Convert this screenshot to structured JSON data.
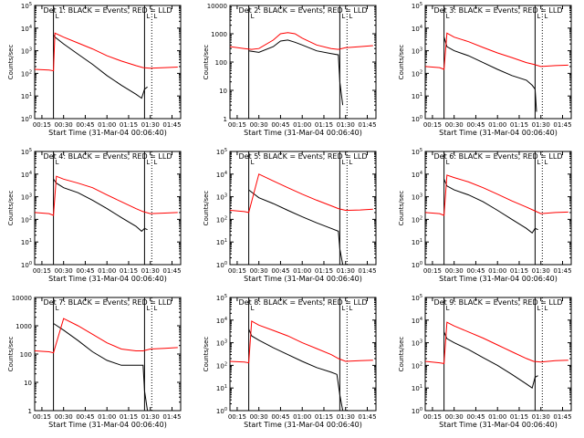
{
  "figure": {
    "background": "#ffffff",
    "events_color": "#000000",
    "lld_color": "#ff0000"
  },
  "chart_data": [
    {
      "type": "line",
      "title": "Det 1: BLACK = Events, RED = LLD",
      "xlabel": "Start Time (31-Mar-04 00:06:40)",
      "ylabel": "Counts/sec",
      "xticks": [
        "00:15",
        "00:30",
        "00:45",
        "01:00",
        "01:15",
        "01:30",
        "01:45"
      ],
      "xlim": [
        "00:10",
        "01:51"
      ],
      "ylim": [
        1,
        100000
      ],
      "yscale": "log",
      "yticks": [
        "10^0",
        "10^1",
        "10^2",
        "10^3",
        "10^4",
        "10^5"
      ],
      "markers": [
        "00:23",
        "01:26",
        "01:31"
      ],
      "marker_label": "L",
      "series": [
        {
          "name": "Events",
          "color": "#000000",
          "x": [
            "00:23",
            "00:24",
            "00:30",
            "00:40",
            "00:50",
            "01:00",
            "01:10",
            "01:20",
            "01:24",
            "01:26",
            "01:28"
          ],
          "y": [
            5000,
            4000,
            2000,
            700,
            250,
            80,
            30,
            12,
            8,
            20,
            25
          ]
        },
        {
          "name": "LLD",
          "color": "#ff0000",
          "x": [
            "00:10",
            "00:20",
            "00:23",
            "00:24",
            "00:30",
            "00:40",
            "00:50",
            "01:00",
            "01:10",
            "01:20",
            "01:25",
            "01:30",
            "01:40",
            "01:49"
          ],
          "y": [
            150,
            140,
            130,
            6000,
            4000,
            2200,
            1200,
            600,
            350,
            220,
            180,
            170,
            180,
            190
          ]
        }
      ]
    },
    {
      "type": "line",
      "title": "Det 2: BLACK = Events, RED = LLD",
      "xlabel": "Start Time (31-Mar-04 00:06:40)",
      "ylabel": "Counts/sec",
      "xticks": [
        "00:15",
        "00:30",
        "00:45",
        "01:00",
        "01:15",
        "01:30",
        "01:45"
      ],
      "xlim": [
        "00:10",
        "01:51"
      ],
      "ylim": [
        1,
        10000
      ],
      "yscale": "log",
      "yticks": [
        "1",
        "10",
        "100",
        "1000",
        "10000"
      ],
      "markers": [
        "00:23",
        "01:26",
        "01:31"
      ],
      "marker_label": "L",
      "series": [
        {
          "name": "Events",
          "color": "#000000",
          "x": [
            "00:23",
            "00:30",
            "00:40",
            "00:45",
            "00:50",
            "00:55",
            "01:00",
            "01:10",
            "01:20",
            "01:25",
            "01:26",
            "01:28"
          ],
          "y": [
            250,
            220,
            350,
            550,
            600,
            500,
            400,
            250,
            200,
            180,
            20,
            3
          ]
        },
        {
          "name": "LLD",
          "color": "#ff0000",
          "x": [
            "00:10",
            "00:20",
            "00:25",
            "00:30",
            "00:40",
            "00:45",
            "00:50",
            "00:55",
            "01:00",
            "01:10",
            "01:20",
            "01:25",
            "01:30",
            "01:40",
            "01:49"
          ],
          "y": [
            350,
            300,
            280,
            300,
            600,
            1000,
            1100,
            1000,
            700,
            400,
            300,
            280,
            320,
            350,
            380
          ]
        }
      ]
    },
    {
      "type": "line",
      "title": "Det 3: BLACK = Events, RED = LLD",
      "xlabel": "Start Time (31-Mar-04 00:06:40)",
      "ylabel": "Counts/sec",
      "xticks": [
        "00:15",
        "00:30",
        "00:45",
        "01:00",
        "01:15",
        "01:30",
        "01:45"
      ],
      "xlim": [
        "00:10",
        "01:51"
      ],
      "ylim": [
        1,
        100000
      ],
      "yscale": "log",
      "yticks": [
        "10^0",
        "10^1",
        "10^2",
        "10^3",
        "10^4",
        "10^5"
      ],
      "markers": [
        "00:23",
        "01:26",
        "01:31"
      ],
      "marker_label": "L",
      "series": [
        {
          "name": "Events",
          "color": "#000000",
          "x": [
            "00:23",
            "00:25",
            "00:30",
            "00:40",
            "00:50",
            "01:00",
            "01:10",
            "01:20",
            "01:24",
            "01:26",
            "01:27"
          ],
          "y": [
            4000,
            1500,
            1000,
            600,
            300,
            150,
            80,
            50,
            30,
            20,
            2
          ]
        },
        {
          "name": "LLD",
          "color": "#ff0000",
          "x": [
            "00:10",
            "00:20",
            "00:23",
            "00:25",
            "00:30",
            "00:40",
            "00:50",
            "01:00",
            "01:10",
            "01:20",
            "01:25",
            "01:30",
            "01:40",
            "01:49"
          ],
          "y": [
            200,
            180,
            150,
            6000,
            4000,
            2500,
            1400,
            800,
            500,
            300,
            250,
            200,
            220,
            230
          ]
        }
      ]
    },
    {
      "type": "line",
      "title": "Det 4: BLACK = Events, RED = LLD",
      "xlabel": "Start Time (31-Mar-04 00:06:40)",
      "ylabel": "Counts/sec",
      "xticks": [
        "00:15",
        "00:30",
        "00:45",
        "01:00",
        "01:15",
        "01:30",
        "01:45"
      ],
      "xlim": [
        "00:10",
        "01:51"
      ],
      "ylim": [
        1,
        100000
      ],
      "yscale": "log",
      "yticks": [
        "10^0",
        "10^1",
        "10^2",
        "10^3",
        "10^4",
        "10^5"
      ],
      "markers": [
        "00:23",
        "01:26",
        "01:31"
      ],
      "marker_label": "L",
      "series": [
        {
          "name": "Events",
          "color": "#000000",
          "x": [
            "00:23",
            "00:25",
            "00:30",
            "00:40",
            "00:50",
            "01:00",
            "01:10",
            "01:20",
            "01:24",
            "01:26",
            "01:28"
          ],
          "y": [
            6000,
            4000,
            2500,
            1500,
            700,
            300,
            120,
            50,
            30,
            40,
            35
          ]
        },
        {
          "name": "LLD",
          "color": "#ff0000",
          "x": [
            "00:10",
            "00:20",
            "00:23",
            "00:25",
            "00:30",
            "00:40",
            "00:50",
            "01:00",
            "01:10",
            "01:20",
            "01:25",
            "01:30",
            "01:40",
            "01:49"
          ],
          "y": [
            200,
            180,
            150,
            8000,
            6000,
            4000,
            2500,
            1200,
            600,
            300,
            220,
            180,
            190,
            200
          ]
        }
      ]
    },
    {
      "type": "line",
      "title": "Det 5: BLACK = Events, RED = LLD",
      "xlabel": "Start Time (31-Mar-04 00:06:40)",
      "ylabel": "Counts/sec",
      "xticks": [
        "00:15",
        "00:30",
        "00:45",
        "01:00",
        "01:15",
        "01:30",
        "01:45"
      ],
      "xlim": [
        "00:10",
        "01:51"
      ],
      "ylim": [
        1,
        100000
      ],
      "yscale": "log",
      "yticks": [
        "10^0",
        "10^1",
        "10^2",
        "10^3",
        "10^4",
        "10^5"
      ],
      "markers": [
        "00:23",
        "01:26",
        "01:31"
      ],
      "marker_label": "L",
      "series": [
        {
          "name": "Events",
          "color": "#000000",
          "x": [
            "00:23",
            "00:30",
            "00:40",
            "00:50",
            "01:00",
            "01:10",
            "01:20",
            "01:25",
            "01:26",
            "01:28"
          ],
          "y": [
            2000,
            900,
            500,
            250,
            130,
            70,
            40,
            30,
            5,
            1
          ]
        },
        {
          "name": "LLD",
          "color": "#ff0000",
          "x": [
            "00:10",
            "00:20",
            "00:23",
            "00:30",
            "00:40",
            "00:50",
            "01:00",
            "01:10",
            "01:20",
            "01:25",
            "01:30",
            "01:40",
            "01:49"
          ],
          "y": [
            250,
            220,
            200,
            10000,
            5000,
            2500,
            1300,
            700,
            400,
            300,
            250,
            260,
            280
          ]
        }
      ]
    },
    {
      "type": "line",
      "title": "Det 6: BLACK = Events, RED = LLD",
      "xlabel": "Start Time (31-Mar-04 00:06:40)",
      "ylabel": "Counts/sec",
      "xticks": [
        "00:15",
        "00:30",
        "00:45",
        "01:00",
        "01:15",
        "01:30",
        "01:45"
      ],
      "xlim": [
        "00:10",
        "01:51"
      ],
      "ylim": [
        1,
        100000
      ],
      "yscale": "log",
      "yticks": [
        "10^0",
        "10^1",
        "10^2",
        "10^3",
        "10^4",
        "10^5"
      ],
      "markers": [
        "00:23",
        "01:26",
        "01:31"
      ],
      "marker_label": "L",
      "series": [
        {
          "name": "Events",
          "color": "#000000",
          "x": [
            "00:23",
            "00:25",
            "00:30",
            "00:40",
            "00:50",
            "01:00",
            "01:10",
            "01:20",
            "01:24",
            "01:26",
            "01:28"
          ],
          "y": [
            6000,
            3000,
            2000,
            1200,
            600,
            250,
            100,
            40,
            25,
            40,
            35
          ]
        },
        {
          "name": "LLD",
          "color": "#ff0000",
          "x": [
            "00:10",
            "00:20",
            "00:23",
            "00:25",
            "00:30",
            "00:40",
            "00:50",
            "01:00",
            "01:10",
            "01:20",
            "01:25",
            "01:30",
            "01:40",
            "01:49"
          ],
          "y": [
            200,
            180,
            150,
            9000,
            7000,
            4500,
            2500,
            1300,
            650,
            350,
            250,
            180,
            200,
            210
          ]
        }
      ]
    },
    {
      "type": "line",
      "title": "Det 7: BLACK = Events, RED = LLD",
      "xlabel": "Start Time (31-Mar-04 00:06:40)",
      "ylabel": "Counts/sec",
      "xticks": [
        "00:15",
        "00:30",
        "00:45",
        "01:00",
        "01:15",
        "01:30",
        "01:45"
      ],
      "xlim": [
        "00:10",
        "01:51"
      ],
      "ylim": [
        1,
        10000
      ],
      "yscale": "log",
      "yticks": [
        "1",
        "10",
        "100",
        "1000",
        "10000"
      ],
      "markers": [
        "00:23",
        "01:26",
        "01:31"
      ],
      "marker_label": "L",
      "series": [
        {
          "name": "Events",
          "color": "#000000",
          "x": [
            "00:23",
            "00:30",
            "00:40",
            "00:50",
            "01:00",
            "01:10",
            "01:20",
            "01:25",
            "01:26",
            "01:28"
          ],
          "y": [
            1200,
            700,
            300,
            120,
            60,
            40,
            40,
            40,
            5,
            1
          ]
        },
        {
          "name": "LLD",
          "color": "#ff0000",
          "x": [
            "00:10",
            "00:20",
            "00:23",
            "00:30",
            "00:40",
            "00:50",
            "01:00",
            "01:10",
            "01:20",
            "01:25",
            "01:30",
            "01:40",
            "01:49"
          ],
          "y": [
            130,
            120,
            110,
            1800,
            1000,
            500,
            250,
            150,
            130,
            130,
            150,
            160,
            170
          ]
        }
      ]
    },
    {
      "type": "line",
      "title": "Det 8: BLACK = Events, RED = LLD",
      "xlabel": "Start Time (31-Mar-04 00:06:40)",
      "ylabel": "Counts/sec",
      "xticks": [
        "00:15",
        "00:30",
        "00:45",
        "01:00",
        "01:15",
        "01:30",
        "01:45"
      ],
      "xlim": [
        "00:10",
        "01:51"
      ],
      "ylim": [
        1,
        100000
      ],
      "yscale": "log",
      "yticks": [
        "10^0",
        "10^1",
        "10^2",
        "10^3",
        "10^4",
        "10^5"
      ],
      "markers": [
        "00:23",
        "01:26",
        "01:31"
      ],
      "marker_label": "L",
      "series": [
        {
          "name": "Events",
          "color": "#000000",
          "x": [
            "00:23",
            "00:25",
            "00:30",
            "00:40",
            "00:50",
            "01:00",
            "01:10",
            "01:20",
            "01:24",
            "01:26",
            "01:28"
          ],
          "y": [
            4000,
            2000,
            1300,
            600,
            300,
            150,
            80,
            50,
            40,
            5,
            1
          ]
        },
        {
          "name": "LLD",
          "color": "#ff0000",
          "x": [
            "00:10",
            "00:20",
            "00:23",
            "00:25",
            "00:30",
            "00:40",
            "00:50",
            "01:00",
            "01:10",
            "01:20",
            "01:25",
            "01:30",
            "01:40",
            "01:49"
          ],
          "y": [
            150,
            140,
            130,
            9000,
            6000,
            3500,
            2000,
            1000,
            550,
            300,
            200,
            150,
            160,
            170
          ]
        }
      ]
    },
    {
      "type": "line",
      "title": "Det 9: BLACK = Events, RED = LLD",
      "xlabel": "Start Time (31-Mar-04 00:06:40)",
      "ylabel": "Counts/sec",
      "xticks": [
        "00:15",
        "00:30",
        "00:45",
        "01:00",
        "01:15",
        "01:30",
        "01:45"
      ],
      "xlim": [
        "00:10",
        "01:51"
      ],
      "ylim": [
        1,
        100000
      ],
      "yscale": "log",
      "yticks": [
        "10^0",
        "10^1",
        "10^2",
        "10^3",
        "10^4",
        "10^5"
      ],
      "markers": [
        "00:23",
        "01:26",
        "01:31"
      ],
      "marker_label": "L",
      "series": [
        {
          "name": "Events",
          "color": "#000000",
          "x": [
            "00:23",
            "00:25",
            "00:30",
            "00:40",
            "00:50",
            "01:00",
            "01:10",
            "01:20",
            "01:24",
            "01:26",
            "01:28"
          ],
          "y": [
            3000,
            1500,
            1000,
            500,
            220,
            100,
            40,
            15,
            10,
            30,
            35
          ]
        },
        {
          "name": "LLD",
          "color": "#ff0000",
          "x": [
            "00:10",
            "00:20",
            "00:23",
            "00:25",
            "00:30",
            "00:40",
            "00:50",
            "01:00",
            "01:10",
            "01:20",
            "01:25",
            "01:30",
            "01:40",
            "01:49"
          ],
          "y": [
            150,
            130,
            120,
            8000,
            5500,
            3000,
            1600,
            800,
            400,
            200,
            150,
            140,
            160,
            170
          ]
        }
      ]
    }
  ]
}
